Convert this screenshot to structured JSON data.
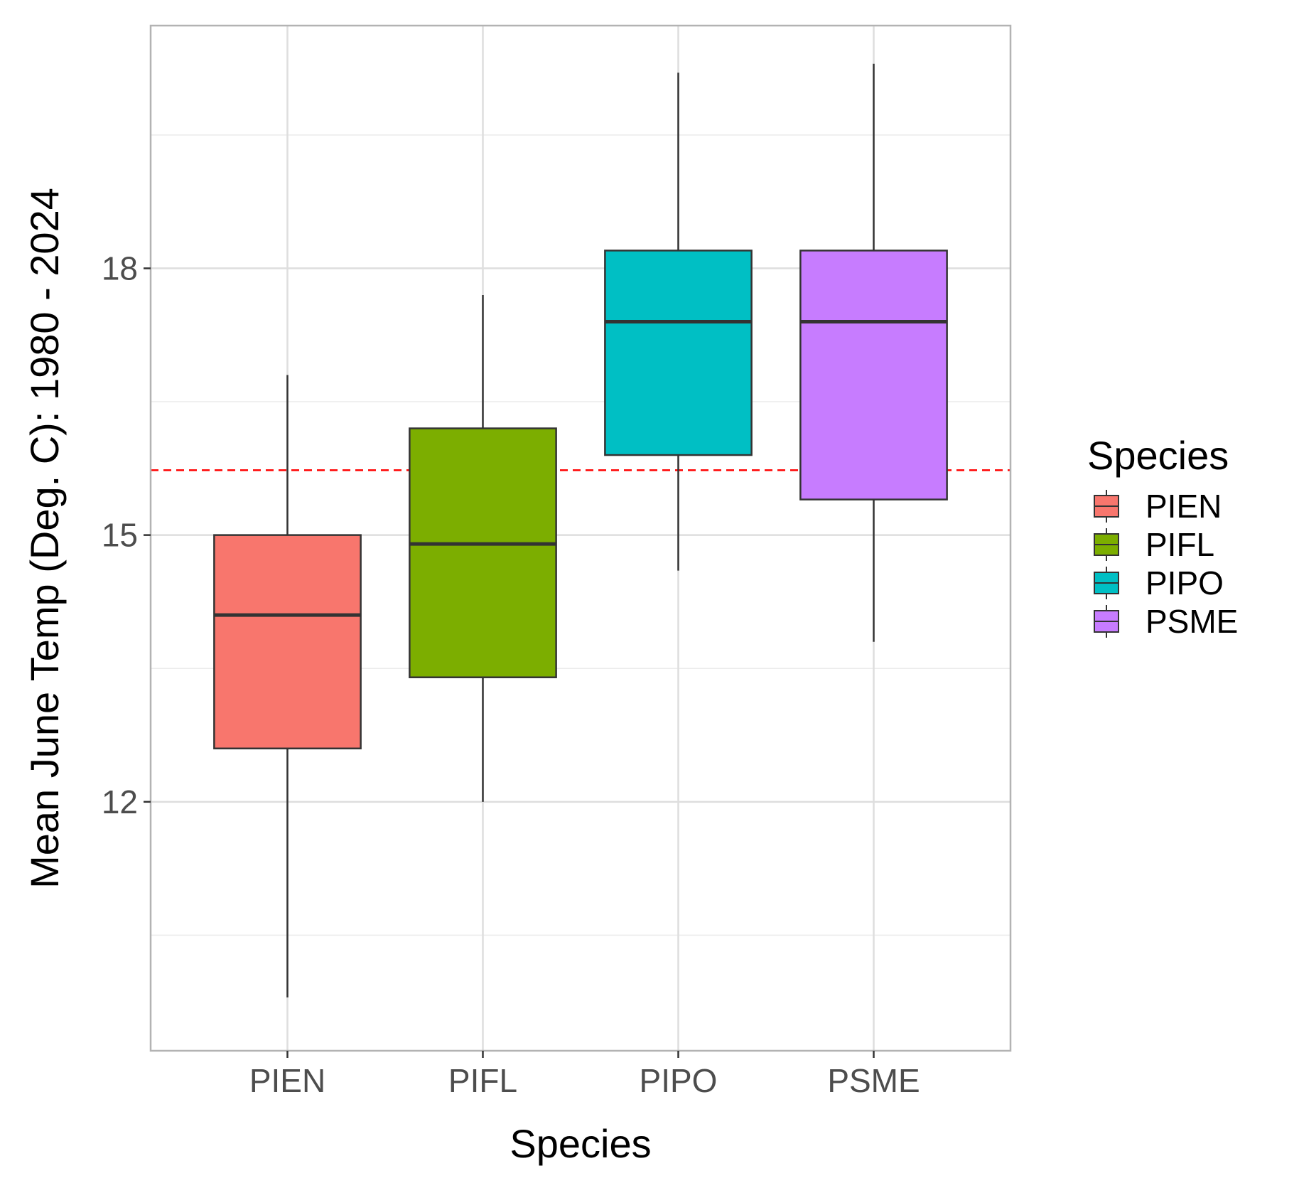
{
  "chart_data": {
    "type": "boxplot",
    "xlabel": "Species",
    "ylabel": "Mean June Temp (Deg. C): 1980 - 2024",
    "ylim": [
      9.2,
      20.73
    ],
    "y_ticks": [
      12,
      15,
      18
    ],
    "y_minor_ticks": [
      10.5,
      13.5,
      16.5,
      19.5
    ],
    "grid": true,
    "reference_line": {
      "y": 15.73,
      "color": "#ff0000",
      "style": "dashed"
    },
    "legend": {
      "title": "Species",
      "position": "right"
    },
    "categories": [
      "PIEN",
      "PIFL",
      "PIPO",
      "PSME"
    ],
    "series": [
      {
        "name": "PIEN",
        "color": "#F8766D",
        "whisker_low": 9.8,
        "q1": 12.6,
        "median": 14.1,
        "q3": 15.0,
        "whisker_high": 16.8
      },
      {
        "name": "PIFL",
        "color": "#7CAE00",
        "whisker_low": 12.0,
        "q1": 13.4,
        "median": 14.9,
        "q3": 16.2,
        "whisker_high": 17.7
      },
      {
        "name": "PIPO",
        "color": "#00BFC4",
        "whisker_low": 14.6,
        "q1": 15.9,
        "median": 17.4,
        "q3": 18.2,
        "whisker_high": 20.2
      },
      {
        "name": "PSME",
        "color": "#C77CFF",
        "whisker_low": 13.8,
        "q1": 15.4,
        "median": 17.4,
        "q3": 18.2,
        "whisker_high": 20.3
      }
    ]
  }
}
